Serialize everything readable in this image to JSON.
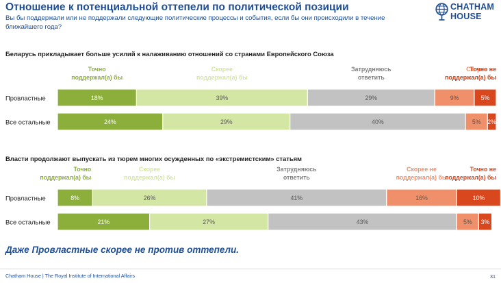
{
  "slide": {
    "title": "Отношение к потенциальной оттепели по политической позиции",
    "subtitle": "Вы бы поддержали или не поддержали следующие политические процессы и события, если бы они происходили в течение ближайшего года?",
    "logo_line1": "CHATHAM",
    "logo_line2": "HOUSE",
    "bottom_note": "Даже Провластные скорее не против оттепели.",
    "footer": "Chatham House  |  The Royal Institute of International Affairs",
    "page_number": "31"
  },
  "colors": {
    "title": "#1f4e96",
    "strong_support": "#8cae3a",
    "rather_support": "#d4e6a4",
    "hard_to_say": "#c2c2c2",
    "rather_not": "#f0906a",
    "strong_not": "#d8471e"
  },
  "chart_data": [
    {
      "type": "bar",
      "stacked": true,
      "orientation": "horizontal",
      "title": "Беларусь прикладывает больше усилий к налаживанию отношений со странами Европейского Союза",
      "categories": [
        "Провластные",
        "Все остальные"
      ],
      "series": [
        {
          "name": "Точно поддержал(а) бы",
          "values": [
            18,
            24
          ]
        },
        {
          "name": "Скорее поддержал(а) бы",
          "values": [
            39,
            29
          ]
        },
        {
          "name": "Затрудняюсь ответить",
          "values": [
            29,
            40
          ]
        },
        {
          "name": "Скорее не поддержал(а) бы",
          "values": [
            9,
            5
          ]
        },
        {
          "name": "Точно не поддержал(а) бы",
          "values": [
            5,
            2
          ]
        }
      ],
      "legend_labels": [
        [
          "Точно",
          "поддержал(а) бы"
        ],
        [
          "Скорее",
          "поддержал(а) бы"
        ],
        [
          "Затрудняюсь",
          "ответить"
        ],
        [
          "Скорее не",
          "поддержал(а) бы"
        ],
        [
          "Точно не",
          "поддержал(а) бы"
        ]
      ],
      "xlim": [
        0,
        100
      ]
    },
    {
      "type": "bar",
      "stacked": true,
      "orientation": "horizontal",
      "title": "Власти продолжают выпускать из тюрем многих осужденных по «экстремистским» статьям",
      "categories": [
        "Провластные",
        "Все остальные"
      ],
      "series": [
        {
          "name": "Точно поддержал(а) бы",
          "values": [
            8,
            21
          ]
        },
        {
          "name": "Скорее поддержал(а) бы",
          "values": [
            26,
            27
          ]
        },
        {
          "name": "Затрудняюсь ответить",
          "values": [
            41,
            43
          ]
        },
        {
          "name": "Скорее не поддержал(а) бы",
          "values": [
            16,
            5
          ]
        },
        {
          "name": "Точно не поддержал(а) бы",
          "values": [
            10,
            3
          ]
        }
      ],
      "legend_labels": [
        [
          "Точно",
          "поддержал(а) бы"
        ],
        [
          "Скорее",
          "поддержал(а) бы"
        ],
        [
          "Затрудняюсь",
          "ответить"
        ],
        [
          "Скорее не",
          "поддержал(а) бы"
        ],
        [
          "Точно не",
          "поддержал(а) бы"
        ]
      ],
      "xlim": [
        0,
        100
      ]
    }
  ]
}
